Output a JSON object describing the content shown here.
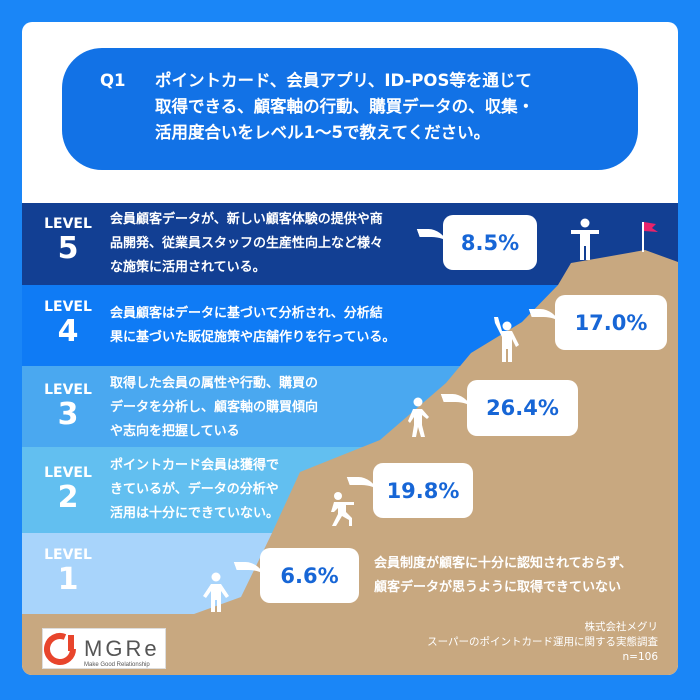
{
  "question": {
    "number": "Q1",
    "lines": [
      "ポイントカード、会員アプリ、ID-POS等を通じて",
      "取得できる、顧客軸の行動、購買データの、収集・",
      "活用度合いをレベル1〜5で教えてください。"
    ]
  },
  "levels": [
    {
      "label": "LEVEL",
      "num": "5",
      "lines": [
        "会員顧客データが、新しい顧客体験の提供や商",
        "品開発、従業員スタッフの生産性向上など様々",
        "な施策に活用されている。"
      ],
      "pct": "8.5%",
      "value": 8.5,
      "color": "#123f93"
    },
    {
      "label": "LEVEL",
      "num": "4",
      "lines": [
        "会員顧客はデータに基づいて分析され、分析結",
        "果に基づいた販促施策や店舗作りを行っている。"
      ],
      "pct": "17.0%",
      "value": 17.0,
      "color": "#0f7bf5"
    },
    {
      "label": "LEVEL",
      "num": "3",
      "lines": [
        "取得した会員の属性や行動、購買の",
        "データを分析し、顧客軸の購買傾向",
        "や志向を把握している"
      ],
      "pct": "26.4%",
      "value": 26.4,
      "color": "#4aa8f0"
    },
    {
      "label": "LEVEL",
      "num": "2",
      "lines": [
        "ポイントカード会員は獲得で",
        "きているが、データの分析や",
        "活用は十分にできていない。"
      ],
      "pct": "19.8%",
      "value": 19.8,
      "color": "#62bff0"
    },
    {
      "label": "LEVEL",
      "num": "1",
      "lines": [
        "会員制度が顧客に十分に認知されておらず、",
        "顧客データが思うように取得できていない"
      ],
      "pct": "6.6%",
      "value": 6.6,
      "color": "#a8d4fb"
    }
  ],
  "source": {
    "company": "株式会社メグリ",
    "survey": "スーパーのポイントカード運用に関する実態調査",
    "n": "n=106"
  },
  "logo": {
    "text": "MGRe",
    "tagline": "Make Good Relationship"
  },
  "colors": {
    "background": "#1a86f7",
    "mountain": "#c8a880",
    "accent": "#1766d6",
    "flag": "#e8236b"
  }
}
